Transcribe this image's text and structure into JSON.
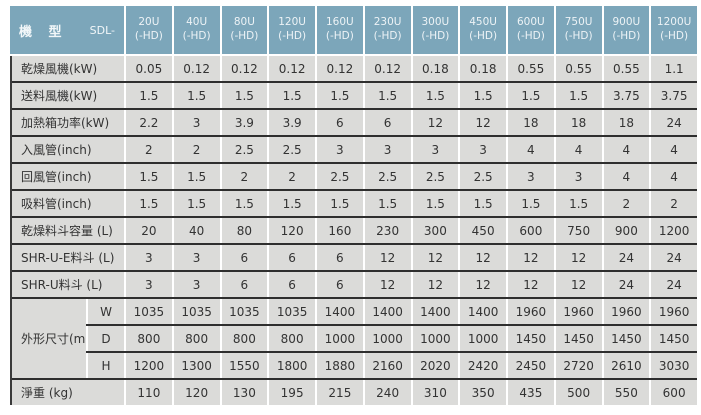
{
  "colors": {
    "header_bg": "#7CA6BA",
    "header_text": "#EDF3F6",
    "cell_bg": "#DBDBD9",
    "cell_text": "#333333",
    "row_line": "#2e2e2e",
    "col_line": "#ffffff"
  },
  "table": {
    "corner": {
      "title": "機 型",
      "prefix": "SDL-"
    },
    "models": [
      {
        "name": "20U",
        "suffix": "(-HD)"
      },
      {
        "name": "40U",
        "suffix": "(-HD)"
      },
      {
        "name": "80U",
        "suffix": "(-HD)"
      },
      {
        "name": "120U",
        "suffix": "(-HD)"
      },
      {
        "name": "160U",
        "suffix": "(-HD)"
      },
      {
        "name": "230U",
        "suffix": "(-HD)"
      },
      {
        "name": "300U",
        "suffix": "(-HD)"
      },
      {
        "name": "450U",
        "suffix": "(-HD)"
      },
      {
        "name": "600U",
        "suffix": "(-HD)"
      },
      {
        "name": "750U",
        "suffix": "(-HD)"
      },
      {
        "name": "900U",
        "suffix": "(-HD)"
      },
      {
        "name": "1200U",
        "suffix": "(-HD)"
      }
    ],
    "spec_rows": [
      {
        "label": "乾燥風機(kW)",
        "values": [
          "0.05",
          "0.12",
          "0.12",
          "0.12",
          "0.12",
          "0.12",
          "0.18",
          "0.18",
          "0.55",
          "0.55",
          "0.55",
          "1.1"
        ]
      },
      {
        "label": "送料風機(kW)",
        "values": [
          "1.5",
          "1.5",
          "1.5",
          "1.5",
          "1.5",
          "1.5",
          "1.5",
          "1.5",
          "1.5",
          "1.5",
          "3.75",
          "3.75"
        ]
      },
      {
        "label": "加熱箱功率(kW)",
        "values": [
          "2.2",
          "3",
          "3.9",
          "3.9",
          "6",
          "6",
          "12",
          "12",
          "18",
          "18",
          "18",
          "24"
        ]
      },
      {
        "label": "入風管(inch)",
        "values": [
          "2",
          "2",
          "2.5",
          "2.5",
          "3",
          "3",
          "3",
          "3",
          "4",
          "4",
          "4",
          "4"
        ]
      },
      {
        "label": "回風管(inch)",
        "values": [
          "1.5",
          "1.5",
          "2",
          "2",
          "2.5",
          "2.5",
          "2.5",
          "2.5",
          "3",
          "3",
          "4",
          "4"
        ]
      },
      {
        "label": "吸料管(inch)",
        "values": [
          "1.5",
          "1.5",
          "1.5",
          "1.5",
          "1.5",
          "1.5",
          "1.5",
          "1.5",
          "1.5",
          "1.5",
          "2",
          "2"
        ]
      },
      {
        "label": "乾燥料斗容量 (L)",
        "values": [
          "20",
          "40",
          "80",
          "120",
          "160",
          "230",
          "300",
          "450",
          "600",
          "750",
          "900",
          "1200"
        ]
      },
      {
        "label": "SHR-U-E料斗 (L)",
        "values": [
          "3",
          "3",
          "6",
          "6",
          "6",
          "12",
          "12",
          "12",
          "12",
          "12",
          "24",
          "24"
        ]
      },
      {
        "label": "SHR-U料斗 (L)",
        "values": [
          "3",
          "3",
          "6",
          "6",
          "6",
          "12",
          "12",
          "12",
          "12",
          "12",
          "24",
          "24"
        ]
      }
    ],
    "dimension_group": {
      "label": "外形尺寸(mm)",
      "rows": [
        {
          "label": "W",
          "values": [
            "1035",
            "1035",
            "1035",
            "1035",
            "1400",
            "1400",
            "1400",
            "1400",
            "1960",
            "1960",
            "1960",
            "1960"
          ]
        },
        {
          "label": "D",
          "values": [
            "800",
            "800",
            "800",
            "800",
            "1000",
            "1000",
            "1000",
            "1000",
            "1450",
            "1450",
            "1450",
            "1450"
          ]
        },
        {
          "label": "H",
          "values": [
            "1200",
            "1300",
            "1550",
            "1800",
            "1880",
            "2160",
            "2020",
            "2420",
            "2450",
            "2720",
            "2610",
            "3030"
          ]
        }
      ]
    },
    "net_weight_row": {
      "label": "淨重 (kg)",
      "values": [
        "110",
        "120",
        "130",
        "195",
        "215",
        "240",
        "310",
        "350",
        "435",
        "500",
        "550",
        "600"
      ]
    }
  }
}
